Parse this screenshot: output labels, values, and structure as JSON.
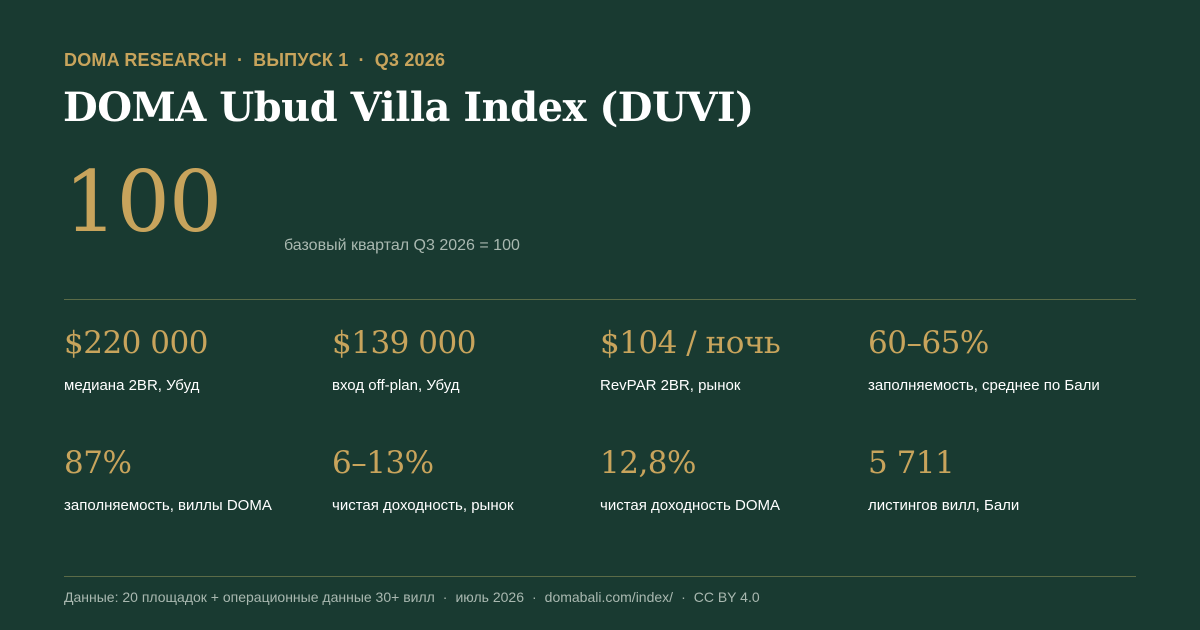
{
  "header": {
    "kicker": [
      "DOMA RESEARCH",
      "ВЫПУСК 1",
      "Q3 2026"
    ],
    "separator": "·",
    "title": "DOMA Ubud Villa Index (DUVI)"
  },
  "index": {
    "value": "100",
    "note": "базовый квартал Q3 2026 = 100"
  },
  "stats": [
    {
      "value": "$220 000",
      "label": "медиана 2BR, Убуд"
    },
    {
      "value": "$139 000",
      "label": "вход off-plan, Убуд"
    },
    {
      "value": "$104 / ночь",
      "label": "RevPAR 2BR, рынок"
    },
    {
      "value": "60–65%",
      "label": "заполняемость, среднее по Бали"
    },
    {
      "value": "87%",
      "label": "заполняемость, виллы DOMA"
    },
    {
      "value": "6–13%",
      "label": "чистая доходность, рынок"
    },
    {
      "value": "12,8%",
      "label": "чистая доходность DOMA"
    },
    {
      "value": "5 711",
      "label": "листингов вилл, Бали"
    }
  ],
  "footer": {
    "items": [
      "Данные: 20 площадок + операционные данные 30+ вилл",
      "июль 2026",
      "domabali.com/index/",
      "CC BY 4.0"
    ],
    "separator": "·"
  },
  "colors": {
    "background": "#193a31",
    "accent_gold": "#c8a45c",
    "muted_text": "#a9b8b0",
    "rule": "#5b6b47"
  }
}
